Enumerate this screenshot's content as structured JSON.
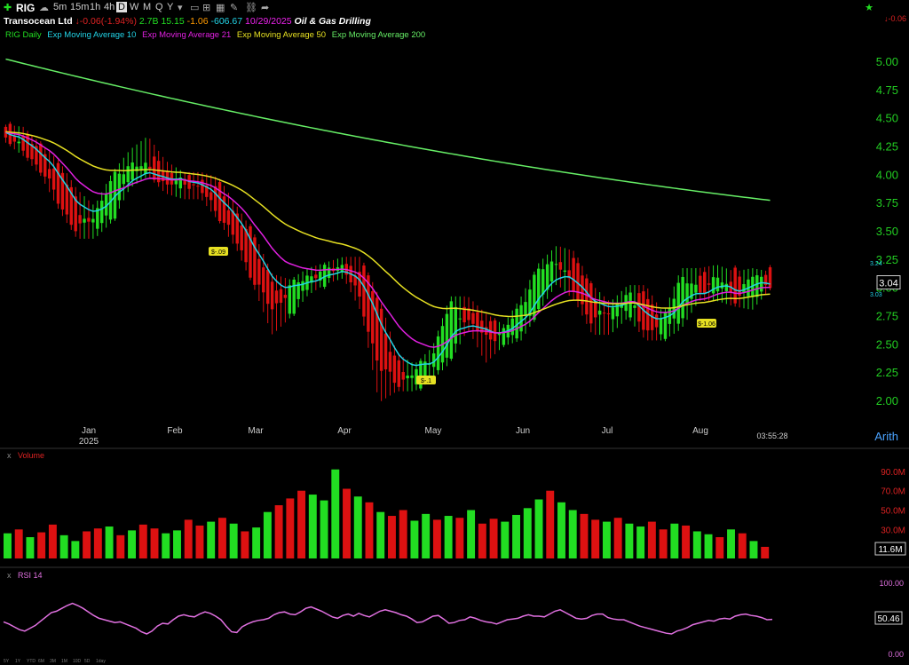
{
  "header": {
    "symbol": "RIG",
    "timeframes": [
      "5m",
      "15m",
      "1h",
      "4h",
      "D",
      "W",
      "M",
      "Q",
      "Y"
    ],
    "active_timeframe": "D",
    "company": "Transocean Ltd",
    "change": "-0.06",
    "change_pct": "(-1.94%)",
    "volume": "2.7B",
    "pe": "15.15",
    "eps": "-1.06",
    "val": "-606.67",
    "date": "10/29/2025",
    "industry": "Oil & Gas Drilling",
    "right_change": "-0.06"
  },
  "legend": {
    "daily": "RIG Daily",
    "ema10": "Exp Moving Average 10",
    "ema21": "Exp Moving Average 21",
    "ema50": "Exp Moving Average 50",
    "ema200": "Exp Moving Average 200"
  },
  "colors": {
    "up": "#22dd22",
    "down": "#dd1111",
    "ema10": "#22d3e6",
    "ema21": "#e020e0",
    "ema50": "#e6e022",
    "ema200": "#66ee66",
    "rsi": "#e070e0",
    "axis_green": "#22cc22",
    "axis_red": "#dd2222"
  },
  "chart_data": [
    {
      "type": "candlestick",
      "title": "RIG Daily",
      "ylim": [
        1.85,
        5.15
      ],
      "y_ticks": [
        "5.00",
        "4.75",
        "4.50",
        "4.25",
        "4.00",
        "3.75",
        "3.50",
        "3.25",
        "3.00",
        "2.75",
        "2.50",
        "2.25",
        "2.00"
      ],
      "x_labels": [
        "Jan",
        "Feb",
        "Mar",
        "Apr",
        "May",
        "Jun",
        "Jul",
        "Aug"
      ],
      "year_label": "2025",
      "last_price": "3.04",
      "ema_markers": [
        "3.24",
        "3.03"
      ],
      "timestamp": "03:55:28",
      "scale_mode": "Arith",
      "annotations": [
        "$-.09",
        "$-.1",
        "$-1.06"
      ],
      "ohlc_sample": [
        [
          4.38,
          4.42,
          4.3,
          4.35
        ],
        [
          4.35,
          4.4,
          4.18,
          4.2
        ],
        [
          4.2,
          4.25,
          4.0,
          4.05
        ],
        [
          4.05,
          4.1,
          3.7,
          3.75
        ],
        [
          3.75,
          3.85,
          3.45,
          3.5
        ],
        [
          3.5,
          3.7,
          3.45,
          3.65
        ],
        [
          3.65,
          4.0,
          3.6,
          3.95
        ],
        [
          3.95,
          4.2,
          3.9,
          4.1
        ],
        [
          4.1,
          4.32,
          4.0,
          4.05
        ],
        [
          4.05,
          4.1,
          3.85,
          3.9
        ],
        [
          3.9,
          4.0,
          3.8,
          3.95
        ],
        [
          3.95,
          4.0,
          3.8,
          3.85
        ],
        [
          3.85,
          3.95,
          3.6,
          3.65
        ],
        [
          3.65,
          3.7,
          3.35,
          3.4
        ],
        [
          3.4,
          3.45,
          3.0,
          3.05
        ],
        [
          3.05,
          3.1,
          2.6,
          2.8
        ],
        [
          2.8,
          3.05,
          2.75,
          3.0
        ],
        [
          3.0,
          3.15,
          2.95,
          3.1
        ],
        [
          3.1,
          3.2,
          3.05,
          3.15
        ],
        [
          3.15,
          3.25,
          3.1,
          3.2
        ],
        [
          3.2,
          3.25,
          2.8,
          2.85
        ],
        [
          2.85,
          2.9,
          2.0,
          2.3
        ],
        [
          2.3,
          2.4,
          2.1,
          2.15
        ],
        [
          2.15,
          2.3,
          2.1,
          2.25
        ],
        [
          2.25,
          2.45,
          2.2,
          2.4
        ],
        [
          2.4,
          2.9,
          2.35,
          2.85
        ],
        [
          2.85,
          2.9,
          2.65,
          2.7
        ],
        [
          2.7,
          2.75,
          2.35,
          2.55
        ],
        [
          2.55,
          2.65,
          2.5,
          2.6
        ],
        [
          2.6,
          2.9,
          2.55,
          2.85
        ],
        [
          2.85,
          3.2,
          2.8,
          3.15
        ],
        [
          3.15,
          3.35,
          3.05,
          3.25
        ],
        [
          3.25,
          3.3,
          2.9,
          2.95
        ],
        [
          2.95,
          3.0,
          2.6,
          2.7
        ],
        [
          2.7,
          2.85,
          2.6,
          2.8
        ],
        [
          2.8,
          3.0,
          2.75,
          2.95
        ],
        [
          2.95,
          3.0,
          2.55,
          2.6
        ],
        [
          2.6,
          2.75,
          2.55,
          2.7
        ],
        [
          2.7,
          3.15,
          2.65,
          3.1
        ],
        [
          3.1,
          3.15,
          2.9,
          2.95
        ],
        [
          2.95,
          3.18,
          2.9,
          3.1
        ],
        [
          3.1,
          3.12,
          2.85,
          2.9
        ],
        [
          2.9,
          3.15,
          2.82,
          3.1
        ],
        [
          3.1,
          3.12,
          3.0,
          3.04
        ]
      ]
    },
    {
      "type": "bar",
      "title": "Volume",
      "y_ticks": [
        "90.0M",
        "70.0M",
        "50.0M",
        "30.0M"
      ],
      "last_value": "11.6M",
      "values_m": [
        26,
        30,
        22,
        27,
        35,
        24,
        18,
        28,
        31,
        33,
        24,
        29,
        35,
        31,
        26,
        29,
        40,
        34,
        38,
        42,
        36,
        28,
        32,
        48,
        55,
        62,
        70,
        66,
        60,
        92,
        72,
        64,
        58,
        48,
        44,
        50,
        39,
        46,
        40,
        44,
        42,
        50,
        36,
        41,
        38,
        45,
        52,
        61,
        70,
        58,
        50,
        46,
        40,
        38,
        42,
        36,
        33,
        38,
        30,
        36,
        34,
        28,
        25,
        22,
        30,
        26,
        18,
        12
      ],
      "up": [
        1,
        0,
        1,
        0,
        0,
        1,
        1,
        0,
        0,
        1,
        0,
        1,
        0,
        0,
        1,
        1,
        0,
        0,
        1,
        0,
        1,
        0,
        1,
        1,
        0,
        0,
        0,
        1,
        1,
        1,
        0,
        1,
        0,
        1,
        0,
        0,
        1,
        1,
        0,
        1,
        0,
        1,
        0,
        0,
        1,
        1,
        1,
        1,
        0,
        1,
        1,
        0,
        0,
        1,
        0,
        1,
        1,
        0,
        0,
        1,
        0,
        1,
        1,
        0,
        1,
        0,
        1,
        0
      ]
    },
    {
      "type": "line",
      "title": "RSI 14",
      "ylim": [
        0,
        100
      ],
      "y_ticks": [
        "100.00",
        "0.00"
      ],
      "last_value": "50.46",
      "values": [
        47,
        44,
        40,
        36,
        34,
        38,
        42,
        48,
        54,
        60,
        62,
        66,
        70,
        73,
        70,
        66,
        61,
        56,
        52,
        50,
        48,
        46,
        47,
        44,
        41,
        38,
        33,
        30,
        34,
        41,
        45,
        44,
        50,
        55,
        57,
        55,
        54,
        58,
        61,
        59,
        55,
        50,
        41,
        33,
        32,
        40,
        44,
        47,
        49,
        50,
        52,
        57,
        60,
        61,
        58,
        57,
        61,
        66,
        68,
        65,
        62,
        58,
        54,
        52,
        56,
        58,
        55,
        59,
        56,
        54,
        58,
        62,
        64,
        62,
        60,
        57,
        55,
        51,
        46,
        47,
        51,
        55,
        56,
        51,
        45,
        46,
        49,
        50,
        54,
        52,
        49,
        47,
        46,
        44,
        47,
        50,
        51,
        52,
        55,
        57,
        55,
        55,
        54,
        58,
        62,
        64,
        60,
        56,
        52,
        51,
        52,
        56,
        58,
        58,
        53,
        51,
        50,
        50,
        47,
        44,
        41,
        39,
        37,
        35,
        33,
        31,
        30,
        34,
        36,
        39,
        43,
        45,
        47,
        49,
        48,
        51,
        52,
        51,
        55,
        57,
        58,
        56,
        55,
        53,
        50,
        50.46
      ]
    }
  ],
  "footer": {
    "ranges": [
      "5Y",
      "1Y",
      "YTD",
      "6M",
      "3M",
      "1M",
      "10D",
      "5D",
      "1day"
    ]
  }
}
